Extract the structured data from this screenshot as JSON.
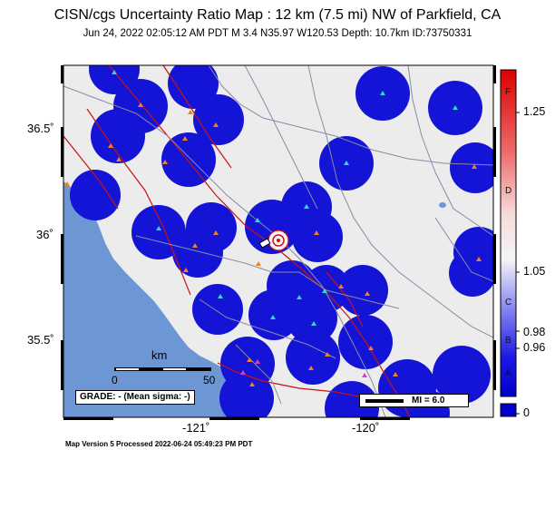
{
  "map": {
    "title": "CISN/cgs Uncertainty Ratio Map : 12 km (7.5 mi) NW of Parkfield, CA",
    "subtitle": "Jun 24, 2022 02:05:12 AM PDT   M 3.4   N35.97 W120.53   Depth: 10.7km   ID:73750331",
    "footer": "Map Version 5 Processed 2022-06-24 05:49:23 PM PDT",
    "lat_labels": [
      "36.5˚",
      "36˚",
      "35.5˚"
    ],
    "lon_labels": [
      "-121˚",
      "-120˚"
    ],
    "scale_bar": {
      "unit": "km",
      "start": "0",
      "end": "50"
    },
    "grade_box": "GRADE: - (Mean sigma: -)",
    "mi_legend": "MI = 6.0",
    "colors": {
      "ocean": "#6c96d4",
      "land": "#ececec",
      "coverage": "#1414d6",
      "fault": "#cc1111",
      "road": "#8a8aa8",
      "station_cyan": "#33d6d6",
      "station_orange": "#f08020",
      "station_magenta": "#d040d0"
    }
  },
  "colorbar": {
    "ticks": [
      "1.25",
      "1.05",
      "0.98",
      "0.96",
      "0"
    ],
    "letters": [
      "F",
      "D",
      "C",
      "B",
      "A"
    ]
  }
}
